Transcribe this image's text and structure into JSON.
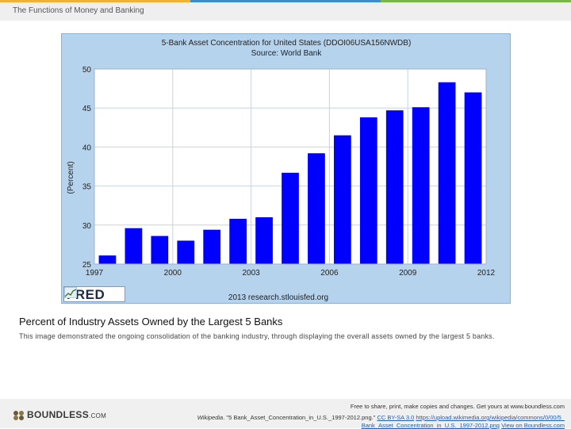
{
  "header": {
    "title": "The Functions of Money and Banking"
  },
  "chart_data": {
    "type": "bar",
    "title": "5-Bank Asset Concentration for United States (DDOI06USA156NWDB)",
    "subtitle": "Source: World Bank",
    "ylabel": "(Percent)",
    "xlabel": "",
    "ylim": [
      25,
      50
    ],
    "yticks": [
      25,
      30,
      35,
      40,
      45,
      50
    ],
    "xlim": [
      1997,
      2012
    ],
    "xticks": [
      1997,
      2000,
      2003,
      2006,
      2009,
      2012
    ],
    "x": [
      1997,
      1998,
      1999,
      2000,
      2001,
      2002,
      2003,
      2004,
      2005,
      2006,
      2007,
      2008,
      2009,
      2010,
      2011
    ],
    "values": [
      26.1,
      29.6,
      28.6,
      28.0,
      29.4,
      30.8,
      31.0,
      36.7,
      39.2,
      41.5,
      43.8,
      44.7,
      45.1,
      48.3,
      47.0
    ],
    "bar_color": "#0000ff",
    "footer": "2013 research.stlouisfed.org",
    "logo_text": "FRED"
  },
  "caption": {
    "title": "Percent of Industry Assets Owned by the Largest 5 Banks",
    "description": "This image demonstrated the ongoing consolidation of the banking industry, through displaying the overall assets owned by the largest 5 banks."
  },
  "footer": {
    "brand": "BOUNDLESS",
    "brand_suffix": ".COM",
    "share_text": "Free to share, print, make copies and changes. Get yours at www.boundless.com",
    "attribution_source": "Wikipedia",
    "attribution_file": ". \"5 Bank_Asset_Concentration_in_U.S._1997-2012.png.\"",
    "license": "CC BY-SA 3.0",
    "url": "https://upload.wikimedia.org/wikipedia/commons/0/00/5_",
    "url_rest": "Bank_Asset_Concentration_in_U.S._1997-2012.png",
    "view_link": "View on Boundless.com"
  }
}
